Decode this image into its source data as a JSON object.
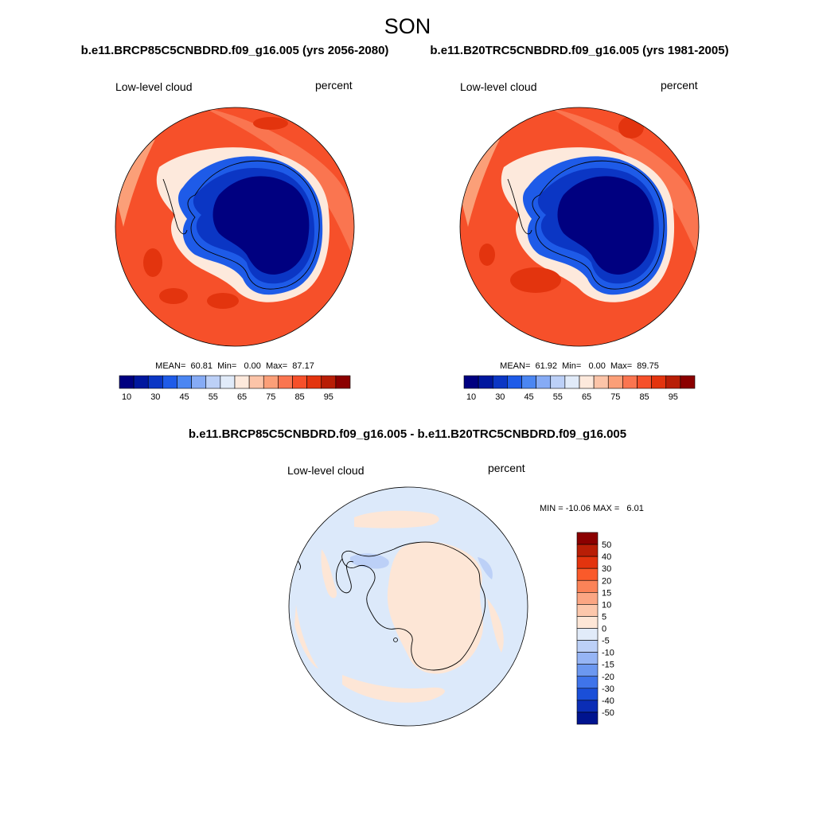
{
  "figure": {
    "title": "SON",
    "panel_left_title": "b.e11.BRCP85C5CNBDRD.f09_g16.005 (yrs 2056-2080)",
    "panel_right_title": "b.e11.B20TRC5CNBDRD.f09_g16.005 (yrs 1981-2005)",
    "panel_diff_title": "b.e11.BRCP85C5CNBDRD.f09_g16.005 - b.e11.B20TRC5CNBDRD.f09_g16.005"
  },
  "panels": [
    {
      "id": "future",
      "variable": "Low-level cloud",
      "units": "percent",
      "stats": {
        "mean": "60.81",
        "min": "0.00",
        "max": "87.17"
      },
      "stats_text": "MEAN=  60.81  Min=   0.00  Max=  87.17"
    },
    {
      "id": "historical",
      "variable": "Low-level cloud",
      "units": "percent",
      "stats": {
        "mean": "61.92",
        "min": "0.00",
        "max": "89.75"
      },
      "stats_text": "MEAN=  61.92  Min=   0.00  Max=  89.75"
    },
    {
      "id": "difference",
      "variable": "Low-level cloud",
      "units": "percent",
      "stats": {
        "min": "-10.06",
        "max": "6.01"
      },
      "stats_text": "MIN = -10.06 MAX =   6.01"
    }
  ],
  "colorbar_abs": {
    "labels": [
      "10",
      "30",
      "45",
      "55",
      "65",
      "75",
      "85",
      "95"
    ],
    "colors": [
      "#000080",
      "#00179e",
      "#0b36c4",
      "#1e5be8",
      "#4b86f2",
      "#86abf5",
      "#bcd0f7",
      "#e1ebf9",
      "#fde9dc",
      "#fcc4a8",
      "#fb9f78",
      "#fa7550",
      "#f6502a",
      "#e3340e",
      "#b81e06",
      "#8b0000"
    ]
  },
  "colorbar_diff": {
    "labels": [
      "50",
      "40",
      "30",
      "20",
      "15",
      "10",
      "5",
      "0",
      "-5",
      "-10",
      "-15",
      "-20",
      "-30",
      "-40",
      "-50"
    ],
    "colors": [
      "#8b0000",
      "#b81e06",
      "#e3340e",
      "#fa5a2a",
      "#fb8358",
      "#fba683",
      "#fcc7ab",
      "#fde6d6",
      "#e1ebf9",
      "#bcd0f7",
      "#96b5f5",
      "#6c98f0",
      "#3f74ea",
      "#1a4fd8",
      "#0b2db5",
      "#00148f"
    ]
  },
  "map_colors": {
    "ocean_high": "#f6502a",
    "ocean_peak": "#e3340e",
    "ocean_mid": "#fa7550",
    "ocean_low": "#fb9f78",
    "transition": "#fde9dc",
    "continent_edge": "#1e5be8",
    "continent_mid": "#0b36c4",
    "continent_core": "#000080",
    "diff_background": "#dce9fa",
    "diff_positive": "#fde6d6",
    "diff_negative": "#bcd0f7"
  }
}
